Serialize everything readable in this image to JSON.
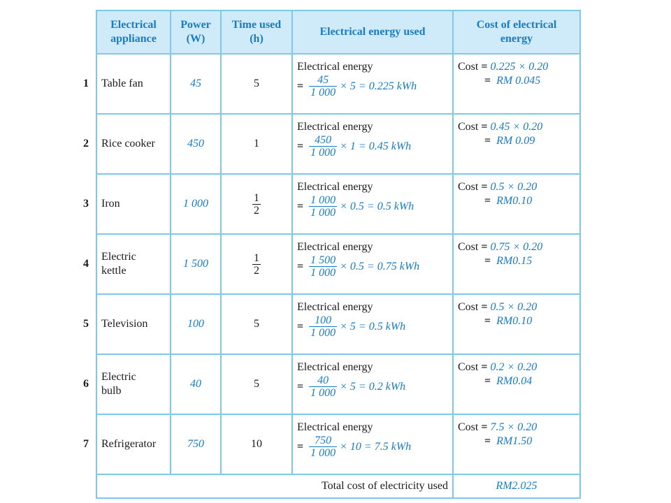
{
  "headers": {
    "appliance": [
      "Electrical",
      "appliance"
    ],
    "power": [
      "Power",
      "(W)"
    ],
    "time": [
      "Time used",
      "(h)"
    ],
    "energy": "Electrical energy used",
    "cost": [
      "Cost of electrical",
      "energy"
    ]
  },
  "energy_label": "Electrical energy",
  "cost_label": "Cost",
  "rows": [
    {
      "num": "1",
      "appliance": [
        "Table fan"
      ],
      "power": "45",
      "time": "5",
      "time_is_fraction": false,
      "frac_num": "45",
      "frac_den": "1 000",
      "energy_rest": "× 5 = 0.225 kWh",
      "cost_expr": "0.225 × 0.20",
      "cost_result": "RM 0.045"
    },
    {
      "num": "2",
      "appliance": [
        "Rice cooker"
      ],
      "power": "450",
      "time": "1",
      "time_is_fraction": false,
      "frac_num": "450",
      "frac_den": "1 000",
      "energy_rest": "× 1 = 0.45 kWh",
      "cost_expr": "0.45 × 0.20",
      "cost_result": "RM 0.09"
    },
    {
      "num": "3",
      "appliance": [
        "Iron"
      ],
      "power": "1 000",
      "time_is_fraction": true,
      "time_num": "1",
      "time_den": "2",
      "frac_num": "1 000",
      "frac_den": "1 000",
      "energy_rest": "× 0.5 = 0.5 kWh",
      "cost_expr": "0.5 × 0.20",
      "cost_result": "RM0.10"
    },
    {
      "num": "4",
      "appliance": [
        "Electric",
        "kettle"
      ],
      "power": "1 500",
      "time_is_fraction": true,
      "time_num": "1",
      "time_den": "2",
      "frac_num": "1 500",
      "frac_den": "1 000",
      "energy_rest": "× 0.5 = 0.75 kWh",
      "cost_expr": "0.75 × 0.20",
      "cost_result": "RM0.15"
    },
    {
      "num": "5",
      "appliance": [
        "Television"
      ],
      "power": "100",
      "time": "5",
      "time_is_fraction": false,
      "frac_num": "100",
      "frac_den": "1 000",
      "energy_rest": "× 5 = 0.5 kWh",
      "cost_expr": "0.5 × 0.20",
      "cost_result": "RM0.10"
    },
    {
      "num": "6",
      "appliance": [
        "Electric",
        "bulb"
      ],
      "power": "40",
      "time": "5",
      "time_is_fraction": false,
      "frac_num": "40",
      "frac_den": "1 000",
      "energy_rest": "× 5 = 0.2 kWh",
      "cost_expr": "0.2 × 0.20",
      "cost_result": "RM0.04"
    },
    {
      "num": "7",
      "appliance": [
        "Refrigerator"
      ],
      "power": "750",
      "time": "10",
      "time_is_fraction": false,
      "frac_num": "750",
      "frac_den": "1 000",
      "energy_rest": "× 10 = 7.5 kWh",
      "cost_expr": "7.5 × 0.20",
      "cost_result": "RM1.50"
    }
  ],
  "total": {
    "label": "Total cost of electricity used",
    "value": "RM2.025"
  },
  "colors": {
    "border": "#7ec8e8",
    "header_bg": "#cfeaf8",
    "accent": "#1a7bc0"
  }
}
